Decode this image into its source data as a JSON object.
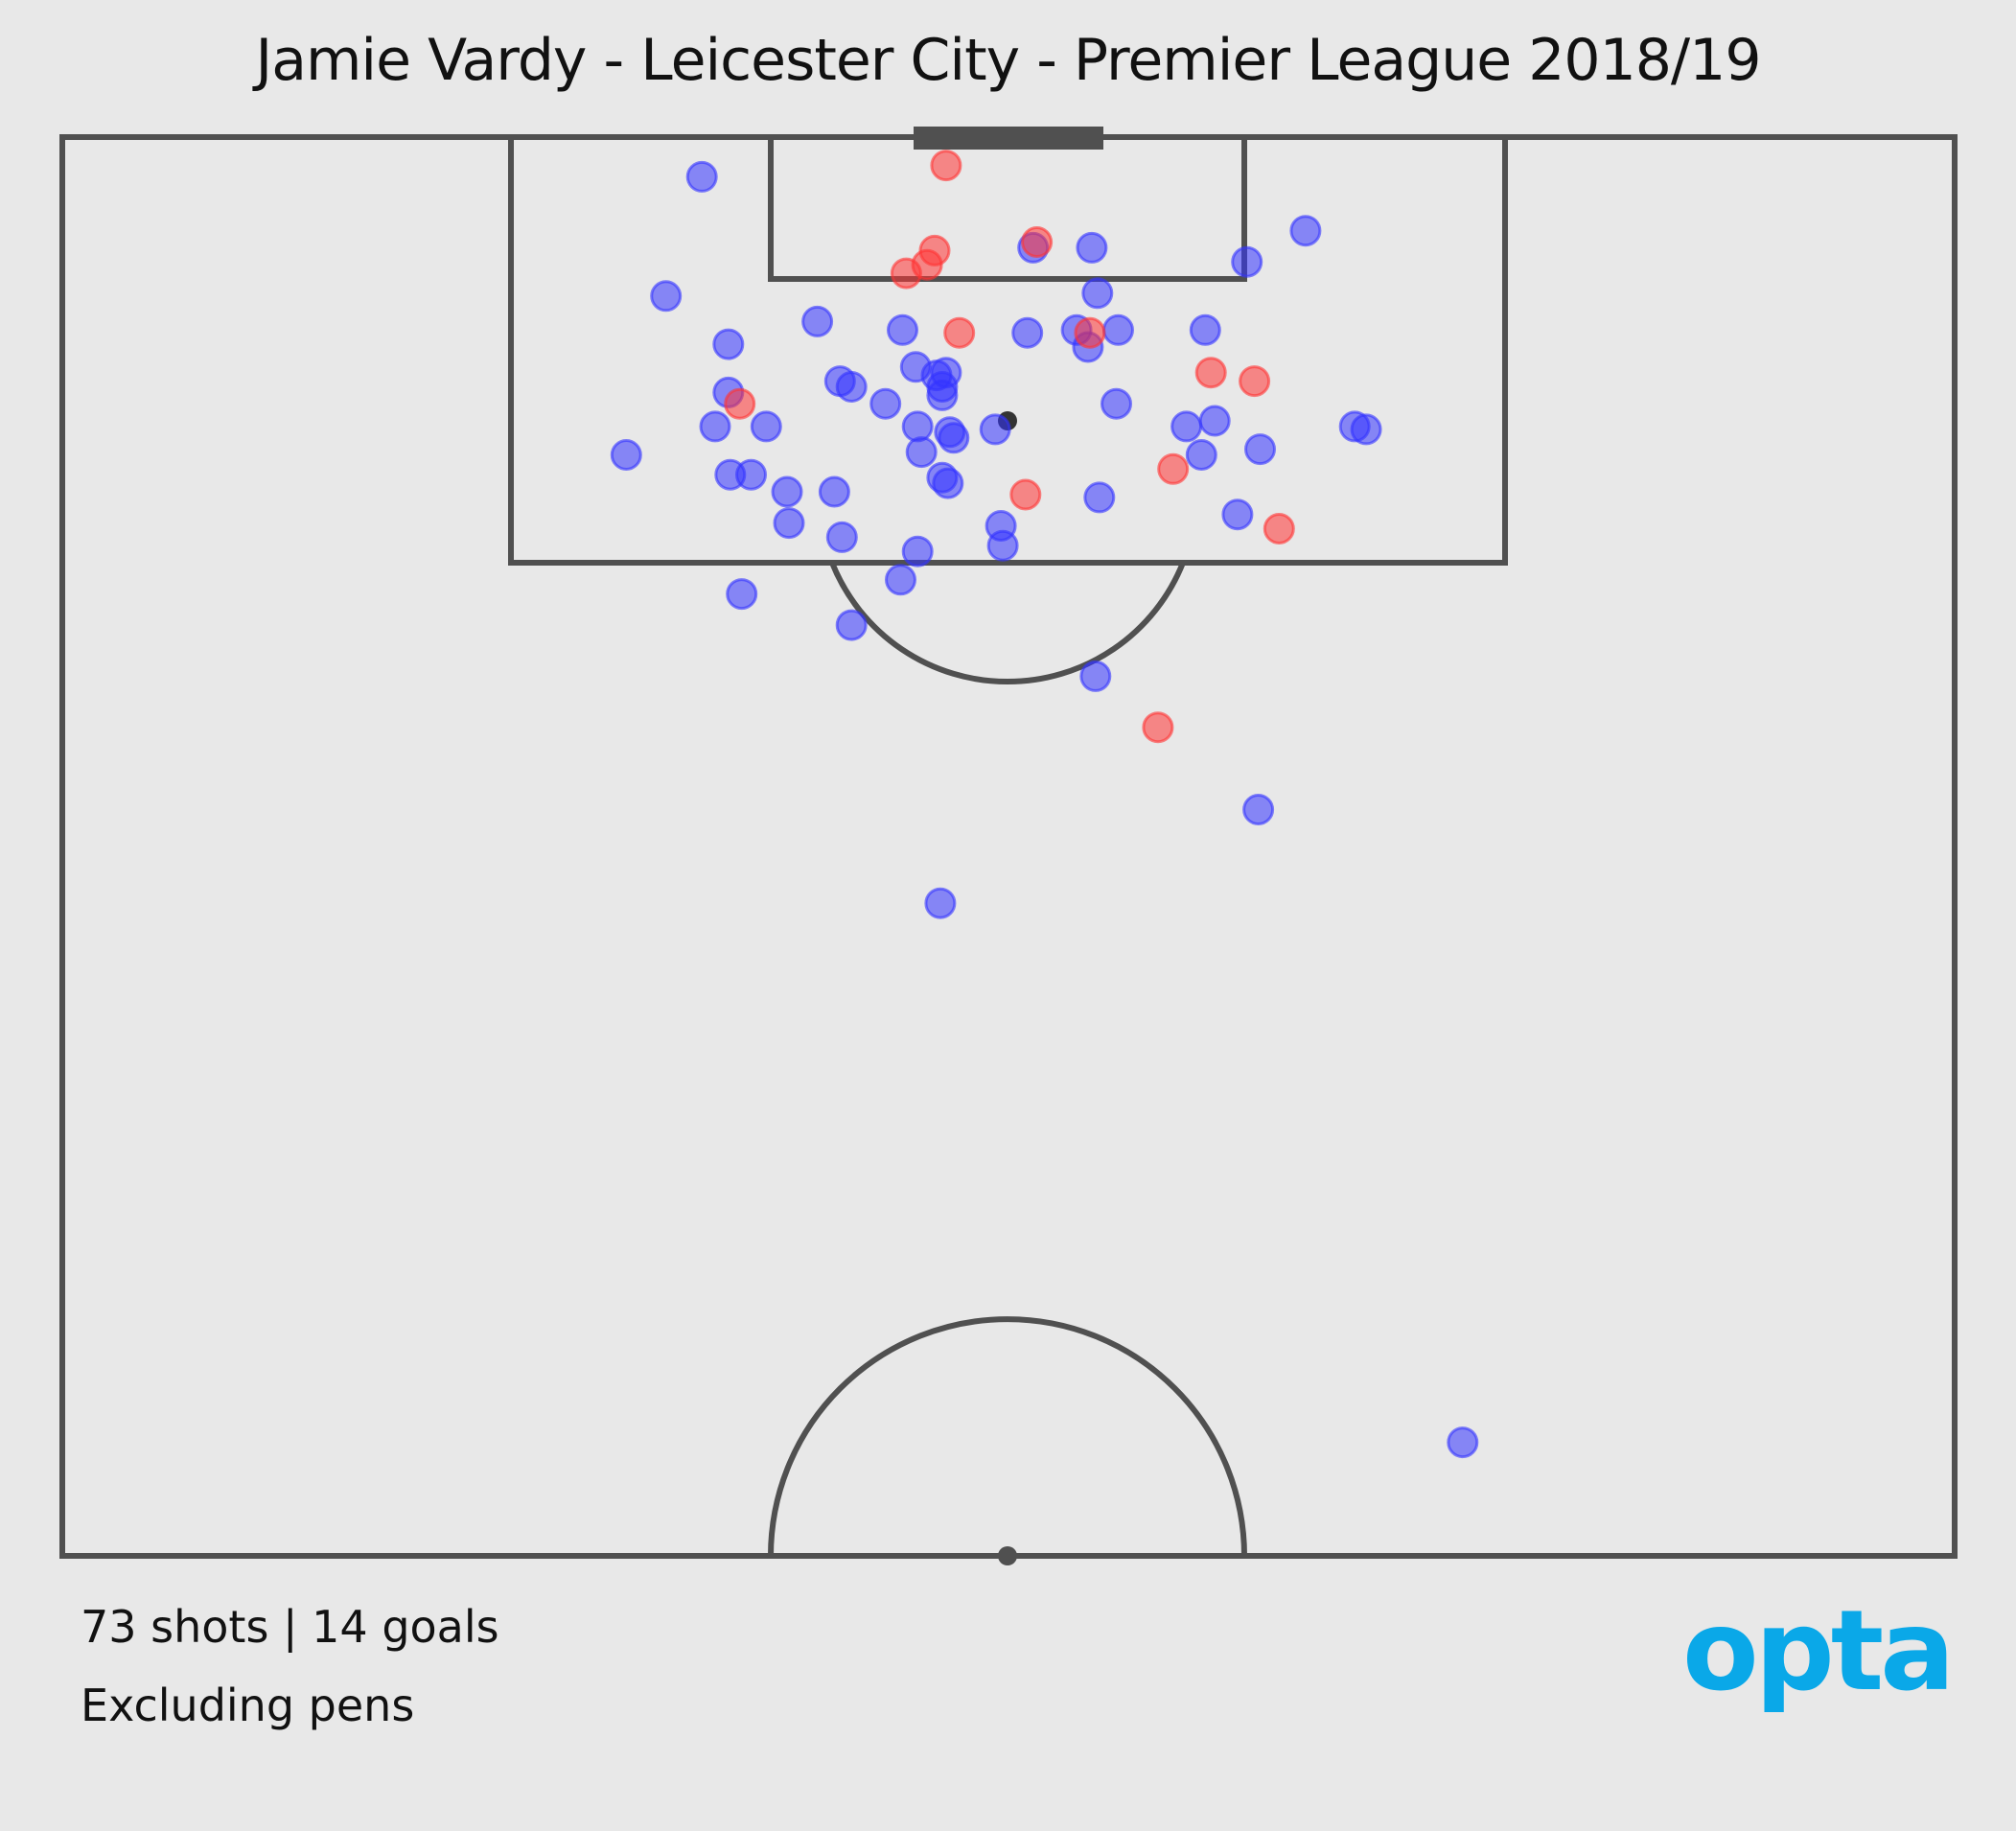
{
  "title": "Jamie Vardy - Leicester City - Premier League 2018/19",
  "footer": {
    "summary": "73 shots | 14 goals",
    "note": "Excluding pens"
  },
  "brand": {
    "text": "opta",
    "color": "#0aa8e8"
  },
  "colors": {
    "background": "#e8e8e8",
    "lines": "#505050",
    "goal": "#ff3333",
    "no_goal": "#3333ff"
  },
  "chart_data": {
    "type": "scatter",
    "title": "Jamie Vardy - Leicester City - Premier League 2018/19",
    "x_range": [
      0,
      100
    ],
    "y_range": [
      50,
      100
    ],
    "series": [
      {
        "key": "goal",
        "color": "#ff3333",
        "points": [
          [
            46.7,
            99.0
          ],
          [
            46.1,
            96.0
          ],
          [
            45.7,
            95.5
          ],
          [
            44.6,
            95.2
          ],
          [
            51.5,
            96.3
          ],
          [
            47.4,
            93.1
          ],
          [
            54.3,
            93.1
          ],
          [
            60.7,
            91.7
          ],
          [
            63.0,
            91.4
          ],
          [
            35.8,
            90.6
          ],
          [
            58.7,
            88.3
          ],
          [
            50.9,
            87.4
          ],
          [
            64.3,
            86.2
          ],
          [
            57.9,
            79.2
          ]
        ]
      },
      {
        "key": "no_goal",
        "color": "#3333ff",
        "points": [
          [
            33.8,
            98.6
          ],
          [
            65.7,
            96.7
          ],
          [
            51.3,
            96.1
          ],
          [
            54.4,
            96.1
          ],
          [
            62.6,
            95.6
          ],
          [
            31.9,
            94.4
          ],
          [
            39.9,
            93.5
          ],
          [
            54.7,
            94.5
          ],
          [
            35.2,
            92.7
          ],
          [
            44.4,
            93.2
          ],
          [
            51.0,
            93.1
          ],
          [
            53.6,
            93.2
          ],
          [
            55.8,
            93.2
          ],
          [
            60.4,
            93.2
          ],
          [
            54.2,
            92.6
          ],
          [
            45.1,
            91.9
          ],
          [
            41.1,
            91.4
          ],
          [
            41.7,
            91.2
          ],
          [
            46.2,
            91.6
          ],
          [
            46.7,
            91.7
          ],
          [
            46.5,
            91.2
          ],
          [
            35.2,
            91.0
          ],
          [
            43.5,
            90.6
          ],
          [
            55.7,
            90.6
          ],
          [
            46.5,
            90.9
          ],
          [
            34.5,
            89.8
          ],
          [
            37.2,
            89.8
          ],
          [
            45.2,
            89.8
          ],
          [
            46.9,
            89.6
          ],
          [
            49.3,
            89.7
          ],
          [
            59.4,
            89.8
          ],
          [
            60.9,
            90.0
          ],
          [
            68.3,
            89.8
          ],
          [
            68.9,
            89.7
          ],
          [
            45.4,
            88.9
          ],
          [
            47.1,
            89.4
          ],
          [
            29.8,
            88.8
          ],
          [
            60.2,
            88.8
          ],
          [
            63.3,
            89.0
          ],
          [
            35.3,
            88.1
          ],
          [
            36.4,
            88.1
          ],
          [
            46.5,
            88.0
          ],
          [
            46.8,
            87.8
          ],
          [
            38.3,
            87.5
          ],
          [
            40.8,
            87.5
          ],
          [
            54.8,
            87.3
          ],
          [
            62.1,
            86.7
          ],
          [
            49.6,
            86.3
          ],
          [
            38.4,
            86.4
          ],
          [
            41.2,
            85.9
          ],
          [
            49.7,
            85.6
          ],
          [
            45.2,
            85.4
          ],
          [
            44.3,
            84.4
          ],
          [
            35.9,
            83.9
          ],
          [
            41.7,
            82.8
          ],
          [
            54.6,
            81.0
          ],
          [
            63.2,
            76.3
          ],
          [
            46.4,
            73.0
          ],
          [
            74.0,
            54.0
          ]
        ]
      }
    ]
  }
}
